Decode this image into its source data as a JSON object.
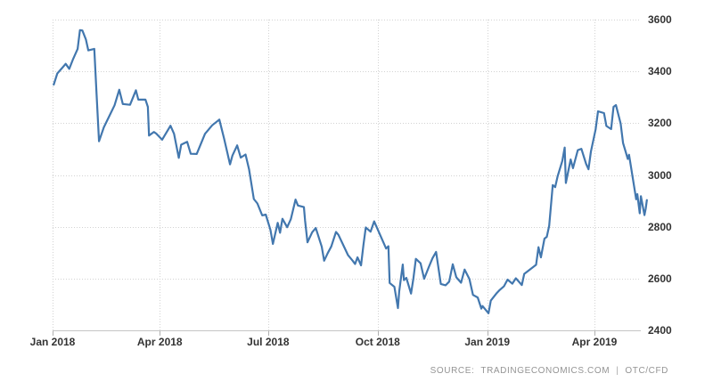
{
  "source": {
    "label": "SOURCE:",
    "name": "TRADINGECONOMICS.COM",
    "separator": "|",
    "feed": "OTC/CFD"
  },
  "chart_data": {
    "type": "line",
    "title": "",
    "legend": "none",
    "grid": "dotted",
    "line_color": "#4277ae",
    "grid_color": "#d2d2d2",
    "axis_color": "#c4c4c4",
    "tick_color": "#b0b0b0",
    "label_color": "#333333",
    "ylim": [
      2400,
      3600
    ],
    "x_start_date": "2018-01-01",
    "y_ticks": [
      {
        "label": "2400",
        "value": 2400
      },
      {
        "label": "2600",
        "value": 2600
      },
      {
        "label": "2800",
        "value": 2800
      },
      {
        "label": "3000",
        "value": 3000
      },
      {
        "label": "3200",
        "value": 3200
      },
      {
        "label": "3400",
        "value": 3400
      },
      {
        "label": "3600",
        "value": 3600
      }
    ],
    "x_ticks": [
      {
        "label": "Jan 2018",
        "date": "2018-01-01"
      },
      {
        "label": "Apr 2018",
        "date": "2018-04-01"
      },
      {
        "label": "Jul 2018",
        "date": "2018-07-01"
      },
      {
        "label": "Oct 2018",
        "date": "2018-10-01"
      },
      {
        "label": "Jan 2019",
        "date": "2019-01-01"
      },
      {
        "label": "Apr 2019",
        "date": "2019-04-01"
      }
    ],
    "points": [
      [
        "2018-01-02",
        3349
      ],
      [
        "2018-01-05",
        3392
      ],
      [
        "2018-01-09",
        3413
      ],
      [
        "2018-01-12",
        3429
      ],
      [
        "2018-01-15",
        3410
      ],
      [
        "2018-01-18",
        3445
      ],
      [
        "2018-01-22",
        3487
      ],
      [
        "2018-01-24",
        3559
      ],
      [
        "2018-01-26",
        3558
      ],
      [
        "2018-01-29",
        3523
      ],
      [
        "2018-01-31",
        3481
      ],
      [
        "2018-02-05",
        3487
      ],
      [
        "2018-02-07",
        3309
      ],
      [
        "2018-02-09",
        3130
      ],
      [
        "2018-02-13",
        3184
      ],
      [
        "2018-02-22",
        3269
      ],
      [
        "2018-02-26",
        3329
      ],
      [
        "2018-03-01",
        3274
      ],
      [
        "2018-03-07",
        3271
      ],
      [
        "2018-03-12",
        3327
      ],
      [
        "2018-03-14",
        3291
      ],
      [
        "2018-03-20",
        3291
      ],
      [
        "2018-03-22",
        3263
      ],
      [
        "2018-03-23",
        3152
      ],
      [
        "2018-03-27",
        3166
      ],
      [
        "2018-03-29",
        3160
      ],
      [
        "2018-04-03",
        3136
      ],
      [
        "2018-04-10",
        3190
      ],
      [
        "2018-04-13",
        3159
      ],
      [
        "2018-04-17",
        3066
      ],
      [
        "2018-04-19",
        3117
      ],
      [
        "2018-04-24",
        3128
      ],
      [
        "2018-04-27",
        3082
      ],
      [
        "2018-05-02",
        3081
      ],
      [
        "2018-05-09",
        3159
      ],
      [
        "2018-05-15",
        3192
      ],
      [
        "2018-05-21",
        3214
      ],
      [
        "2018-05-25",
        3141
      ],
      [
        "2018-05-30",
        3041
      ],
      [
        "2018-06-01",
        3075
      ],
      [
        "2018-06-05",
        3114
      ],
      [
        "2018-06-08",
        3067
      ],
      [
        "2018-06-12",
        3079
      ],
      [
        "2018-06-15",
        3021
      ],
      [
        "2018-06-19",
        2907
      ],
      [
        "2018-06-22",
        2890
      ],
      [
        "2018-06-26",
        2844
      ],
      [
        "2018-06-29",
        2847
      ],
      [
        "2018-07-03",
        2787
      ],
      [
        "2018-07-05",
        2734
      ],
      [
        "2018-07-09",
        2815
      ],
      [
        "2018-07-11",
        2777
      ],
      [
        "2018-07-13",
        2831
      ],
      [
        "2018-07-17",
        2798
      ],
      [
        "2018-07-20",
        2829
      ],
      [
        "2018-07-24",
        2905
      ],
      [
        "2018-07-26",
        2882
      ],
      [
        "2018-07-31",
        2876
      ],
      [
        "2018-08-01",
        2824
      ],
      [
        "2018-08-03",
        2740
      ],
      [
        "2018-08-07",
        2779
      ],
      [
        "2018-08-10",
        2795
      ],
      [
        "2018-08-15",
        2723
      ],
      [
        "2018-08-17",
        2669
      ],
      [
        "2018-08-20",
        2698
      ],
      [
        "2018-08-23",
        2724
      ],
      [
        "2018-08-27",
        2780
      ],
      [
        "2018-08-29",
        2769
      ],
      [
        "2018-09-03",
        2720
      ],
      [
        "2018-09-06",
        2691
      ],
      [
        "2018-09-10",
        2669
      ],
      [
        "2018-09-12",
        2656
      ],
      [
        "2018-09-14",
        2682
      ],
      [
        "2018-09-17",
        2651
      ],
      [
        "2018-09-19",
        2730
      ],
      [
        "2018-09-21",
        2797
      ],
      [
        "2018-09-25",
        2781
      ],
      [
        "2018-09-28",
        2821
      ],
      [
        "2018-10-08",
        2716
      ],
      [
        "2018-10-10",
        2725
      ],
      [
        "2018-10-11",
        2583
      ],
      [
        "2018-10-15",
        2568
      ],
      [
        "2018-10-18",
        2486
      ],
      [
        "2018-10-19",
        2550
      ],
      [
        "2018-10-22",
        2654
      ],
      [
        "2018-10-23",
        2594
      ],
      [
        "2018-10-25",
        2603
      ],
      [
        "2018-10-29",
        2542
      ],
      [
        "2018-10-31",
        2602
      ],
      [
        "2018-11-02",
        2676
      ],
      [
        "2018-11-06",
        2659
      ],
      [
        "2018-11-09",
        2599
      ],
      [
        "2018-11-13",
        2646
      ],
      [
        "2018-11-16",
        2679
      ],
      [
        "2018-11-19",
        2703
      ],
      [
        "2018-11-23",
        2579
      ],
      [
        "2018-11-27",
        2574
      ],
      [
        "2018-11-30",
        2588
      ],
      [
        "2018-12-03",
        2655
      ],
      [
        "2018-12-06",
        2605
      ],
      [
        "2018-12-10",
        2584
      ],
      [
        "2018-12-13",
        2635
      ],
      [
        "2018-12-17",
        2598
      ],
      [
        "2018-12-20",
        2537
      ],
      [
        "2018-12-24",
        2527
      ],
      [
        "2018-12-27",
        2484
      ],
      [
        "2018-12-28",
        2494
      ],
      [
        "2019-01-02",
        2466
      ],
      [
        "2019-01-04",
        2515
      ],
      [
        "2019-01-09",
        2544
      ],
      [
        "2019-01-11",
        2554
      ],
      [
        "2019-01-15",
        2570
      ],
      [
        "2019-01-18",
        2596
      ],
      [
        "2019-01-22",
        2580
      ],
      [
        "2019-01-25",
        2601
      ],
      [
        "2019-01-30",
        2575
      ],
      [
        "2019-02-01",
        2618
      ],
      [
        "2019-02-11",
        2653
      ],
      [
        "2019-02-13",
        2721
      ],
      [
        "2019-02-15",
        2682
      ],
      [
        "2019-02-18",
        2754
      ],
      [
        "2019-02-20",
        2761
      ],
      [
        "2019-02-22",
        2804
      ],
      [
        "2019-02-25",
        2961
      ],
      [
        "2019-02-27",
        2953
      ],
      [
        "2019-03-01",
        2994
      ],
      [
        "2019-03-05",
        3054
      ],
      [
        "2019-03-07",
        3106
      ],
      [
        "2019-03-08",
        2969
      ],
      [
        "2019-03-12",
        3060
      ],
      [
        "2019-03-14",
        3026
      ],
      [
        "2019-03-18",
        3096
      ],
      [
        "2019-03-21",
        3101
      ],
      [
        "2019-03-25",
        3043
      ],
      [
        "2019-03-27",
        3022
      ],
      [
        "2019-03-29",
        3090
      ],
      [
        "2019-04-02",
        3176
      ],
      [
        "2019-04-04",
        3246
      ],
      [
        "2019-04-09",
        3239
      ],
      [
        "2019-04-11",
        3189
      ],
      [
        "2019-04-15",
        3177
      ],
      [
        "2019-04-17",
        3263
      ],
      [
        "2019-04-19",
        3270
      ],
      [
        "2019-04-23",
        3198
      ],
      [
        "2019-04-25",
        3123
      ],
      [
        "2019-04-29",
        3062
      ],
      [
        "2019-04-30",
        3078
      ],
      [
        "2019-05-06",
        2906
      ],
      [
        "2019-05-07",
        2926
      ],
      [
        "2019-05-08",
        2890
      ],
      [
        "2019-05-09",
        2852
      ],
      [
        "2019-05-10",
        2918
      ],
      [
        "2019-05-13",
        2845
      ],
      [
        "2019-05-14",
        2870
      ],
      [
        "2019-05-15",
        2903
      ]
    ]
  }
}
